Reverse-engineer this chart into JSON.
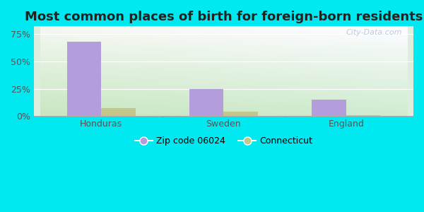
{
  "title": "Most common places of birth for foreign-born residents",
  "categories": [
    "Honduras",
    "Sweden",
    "England"
  ],
  "zip_values": [
    0.68,
    0.25,
    0.15
  ],
  "ct_values": [
    0.07,
    0.04,
    0.005
  ],
  "zip_color": "#b39ddb",
  "ct_color": "#c5c68a",
  "zip_label": "Zip code 06024",
  "ct_label": "Connecticut",
  "yticks": [
    0.0,
    0.25,
    0.5,
    0.75
  ],
  "yticklabels": [
    "0%",
    "25%",
    "50%",
    "75%"
  ],
  "ylim": [
    0,
    0.82
  ],
  "bar_width": 0.28,
  "background_outer": "#00e8f0",
  "watermark": "City-Data.com",
  "title_fontsize": 13,
  "grad_bottom_left": "#c8e6c0",
  "grad_top_right": "#e8f4f0"
}
